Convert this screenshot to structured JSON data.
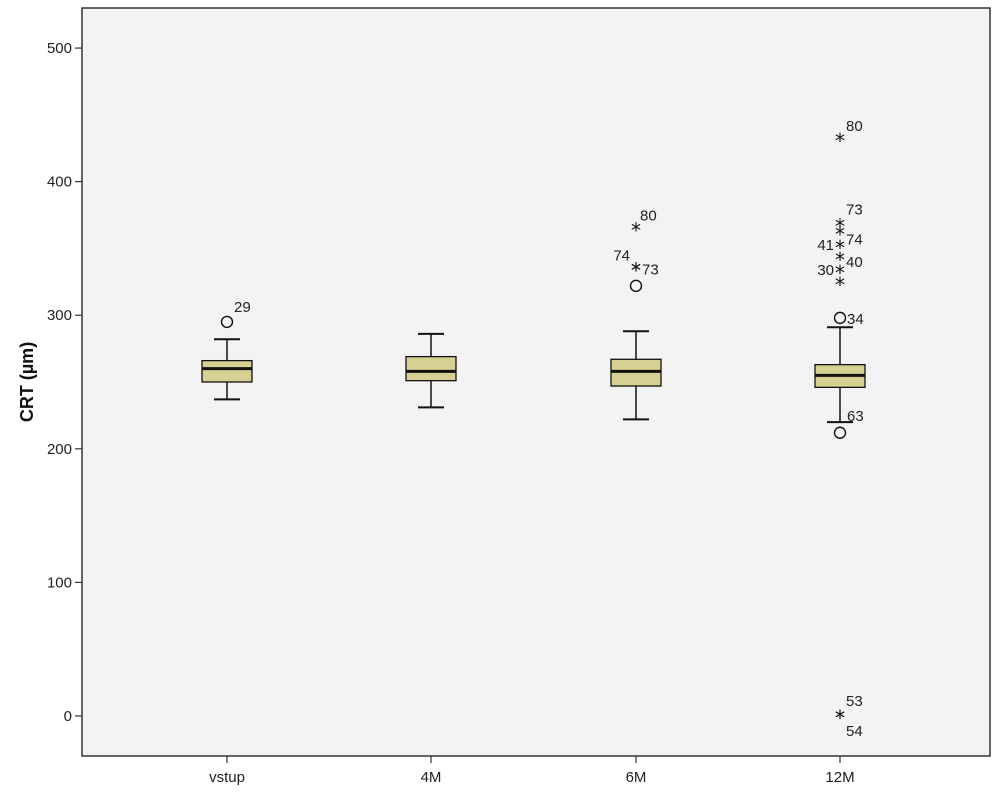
{
  "chart_data": {
    "type": "boxplot",
    "ylabel": "CRT (µm)",
    "ylim": [
      -30,
      530
    ],
    "yticks": [
      0,
      100,
      200,
      300,
      400,
      500
    ],
    "grid": false,
    "colors": {
      "box_fill": "#d6d193",
      "plot_bg": "#f3f3f3",
      "frame": "#333333"
    },
    "categories": [
      "vstup",
      "4M",
      "6M",
      "12M"
    ],
    "boxes": [
      {
        "category": "vstup",
        "whisker_low": 237,
        "q1": 250,
        "median": 260,
        "q3": 266,
        "whisker_high": 282
      },
      {
        "category": "4M",
        "whisker_low": 231,
        "q1": 251,
        "median": 258,
        "q3": 269,
        "whisker_high": 286
      },
      {
        "category": "6M",
        "whisker_low": 222,
        "q1": 247,
        "median": 258,
        "q3": 267,
        "whisker_high": 288
      },
      {
        "category": "12M",
        "whisker_low": 220,
        "q1": 246,
        "median": 255,
        "q3": 263,
        "whisker_high": 291
      }
    ],
    "outliers": [
      {
        "category": "vstup",
        "value": 295,
        "marker": "circle",
        "label": "29"
      },
      {
        "category": "6M",
        "value": 365,
        "marker": "star",
        "label": "80"
      },
      {
        "category": "6M",
        "value": 335,
        "marker": "star",
        "label": "74"
      },
      {
        "category": "6M",
        "value": 335,
        "marker": "star",
        "label": "73"
      },
      {
        "category": "6M",
        "value": 322,
        "marker": "circle",
        "label": ""
      },
      {
        "category": "12M",
        "value": 432,
        "marker": "star",
        "label": "80"
      },
      {
        "category": "12M",
        "value": 368,
        "marker": "star",
        "label": "73"
      },
      {
        "category": "12M",
        "value": 362,
        "marker": "star",
        "label": "74"
      },
      {
        "category": "12M",
        "value": 352,
        "marker": "star",
        "label": "41"
      },
      {
        "category": "12M",
        "value": 343,
        "marker": "star",
        "label": "40"
      },
      {
        "category": "12M",
        "value": 333,
        "marker": "star",
        "label": "30"
      },
      {
        "category": "12M",
        "value": 324,
        "marker": "star",
        "label": ""
      },
      {
        "category": "12M",
        "value": 298,
        "marker": "circle",
        "label": "34"
      },
      {
        "category": "12M",
        "value": 212,
        "marker": "circle",
        "label": "63"
      },
      {
        "category": "12M",
        "value": 0,
        "marker": "star",
        "label": "53"
      },
      {
        "category": "12M",
        "value": 0,
        "marker": "star",
        "label": "54"
      }
    ]
  }
}
